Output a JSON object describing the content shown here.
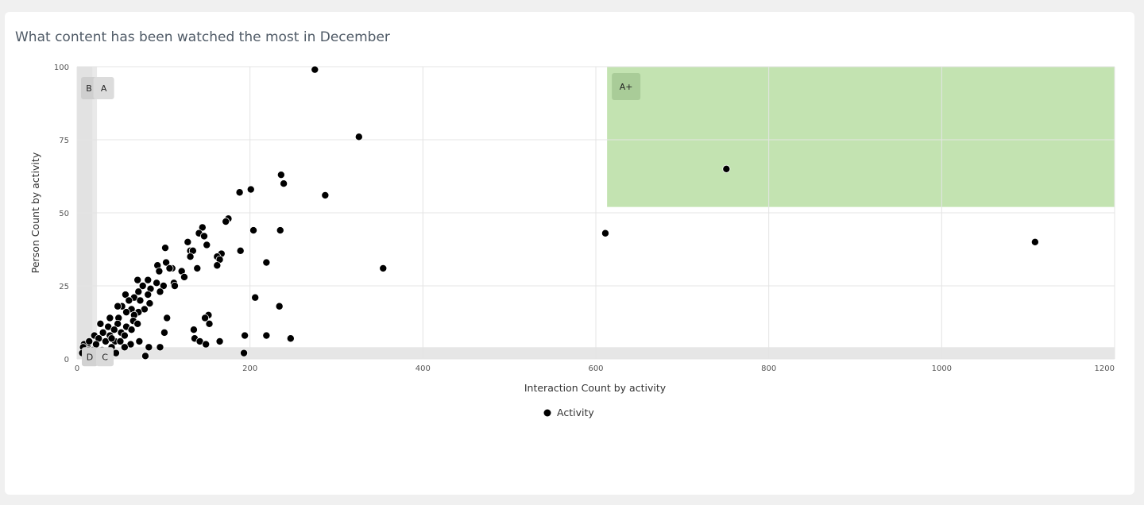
{
  "card": {
    "title": "What content has been watched the most in December"
  },
  "chart_data": {
    "type": "scatter",
    "xlabel": "Interaction Count by activity",
    "ylabel": "Person Count by activity",
    "xlim": [
      0,
      1200
    ],
    "ylim": [
      0,
      100
    ],
    "x_ticks": [
      "0",
      "200",
      "400",
      "600",
      "800",
      "1000",
      "1200"
    ],
    "y_ticks": [
      "0",
      "25",
      "50",
      "75",
      "100"
    ],
    "x_tick_values": [
      0,
      200,
      400,
      600,
      800,
      1000,
      1200
    ],
    "y_tick_values": [
      0,
      25,
      50,
      75,
      100
    ],
    "grid": true,
    "legend": {
      "position": "bottom-center"
    },
    "zones": [
      {
        "label": "B",
        "x": [
          0,
          18
        ],
        "y": [
          0,
          100
        ],
        "color": "#e2e2e2"
      },
      {
        "label": "A",
        "x": [
          18,
          23
        ],
        "y": [
          4,
          100
        ],
        "color": "#e9e9e9"
      },
      {
        "label": "D",
        "x": [
          0,
          23
        ],
        "y": [
          0,
          4
        ],
        "color": "#e2e2e2"
      },
      {
        "label": "C",
        "x": [
          23,
          1200
        ],
        "y": [
          0,
          4
        ],
        "color": "#e6e6e6"
      },
      {
        "label": "A+",
        "x": [
          613,
          1200
        ],
        "y": [
          52,
          100
        ],
        "color": "#c3e3b1"
      }
    ],
    "series": [
      {
        "name": "Activity",
        "color": "#000000",
        "points": [
          [
            275,
            99
          ],
          [
            326,
            76
          ],
          [
            751,
            65
          ],
          [
            611,
            43
          ],
          [
            1108,
            40
          ],
          [
            236,
            63
          ],
          [
            239,
            60
          ],
          [
            201,
            58
          ],
          [
            188,
            57
          ],
          [
            287,
            56
          ],
          [
            175,
            48
          ],
          [
            172,
            47
          ],
          [
            145,
            45
          ],
          [
            141,
            43
          ],
          [
            147,
            42
          ],
          [
            204,
            44
          ],
          [
            235,
            44
          ],
          [
            128,
            40
          ],
          [
            150,
            39
          ],
          [
            102,
            38
          ],
          [
            131,
            37
          ],
          [
            134,
            37
          ],
          [
            189,
            37
          ],
          [
            167,
            36
          ],
          [
            131,
            35
          ],
          [
            162,
            35
          ],
          [
            165,
            34
          ],
          [
            219,
            33
          ],
          [
            103,
            33
          ],
          [
            93,
            32
          ],
          [
            110,
            31
          ],
          [
            107,
            31
          ],
          [
            162,
            32
          ],
          [
            139,
            31
          ],
          [
            354,
            31
          ],
          [
            121,
            30
          ],
          [
            95,
            30
          ],
          [
            124,
            28
          ],
          [
            70,
            27
          ],
          [
            82,
            27
          ],
          [
            112,
            26
          ],
          [
            92,
            26
          ],
          [
            100,
            25
          ],
          [
            113,
            25
          ],
          [
            76,
            25
          ],
          [
            85,
            24
          ],
          [
            71,
            23
          ],
          [
            96,
            23
          ],
          [
            82,
            22
          ],
          [
            56,
            22
          ],
          [
            66,
            21
          ],
          [
            73,
            20
          ],
          [
            60,
            20
          ],
          [
            84,
            19
          ],
          [
            206,
            21
          ],
          [
            52,
            18
          ],
          [
            47,
            18
          ],
          [
            63,
            17
          ],
          [
            78,
            17
          ],
          [
            71,
            16
          ],
          [
            57,
            16
          ],
          [
            66,
            15
          ],
          [
            48,
            14
          ],
          [
            38,
            14
          ],
          [
            65,
            13
          ],
          [
            104,
            14
          ],
          [
            152,
            15
          ],
          [
            148,
            14
          ],
          [
            153,
            12
          ],
          [
            70,
            12
          ],
          [
            47,
            12
          ],
          [
            57,
            11
          ],
          [
            27,
            12
          ],
          [
            36,
            11
          ],
          [
            63,
            10
          ],
          [
            135,
            10
          ],
          [
            43,
            10
          ],
          [
            51,
            9
          ],
          [
            101,
            9
          ],
          [
            30,
            9
          ],
          [
            20,
            8
          ],
          [
            38,
            8
          ],
          [
            55,
            8
          ],
          [
            194,
            8
          ],
          [
            219,
            8
          ],
          [
            136,
            7
          ],
          [
            247,
            7
          ],
          [
            142,
            6
          ],
          [
            72,
            6
          ],
          [
            165,
            6
          ],
          [
            44,
            6
          ],
          [
            149,
            5
          ],
          [
            25,
            7
          ],
          [
            62,
            5
          ],
          [
            96,
            4
          ],
          [
            83,
            4
          ],
          [
            55,
            4
          ],
          [
            40,
            4
          ],
          [
            18,
            3
          ],
          [
            29,
            3
          ],
          [
            12,
            4
          ],
          [
            8,
            5
          ],
          [
            7,
            4
          ],
          [
            6,
            2
          ],
          [
            10,
            1
          ],
          [
            45,
            2
          ],
          [
            79,
            1
          ],
          [
            193,
            2
          ],
          [
            234,
            18
          ],
          [
            13,
            3
          ],
          [
            14,
            6
          ],
          [
            22,
            5
          ],
          [
            33,
            6
          ],
          [
            40,
            7
          ],
          [
            50,
            6
          ]
        ]
      }
    ]
  }
}
